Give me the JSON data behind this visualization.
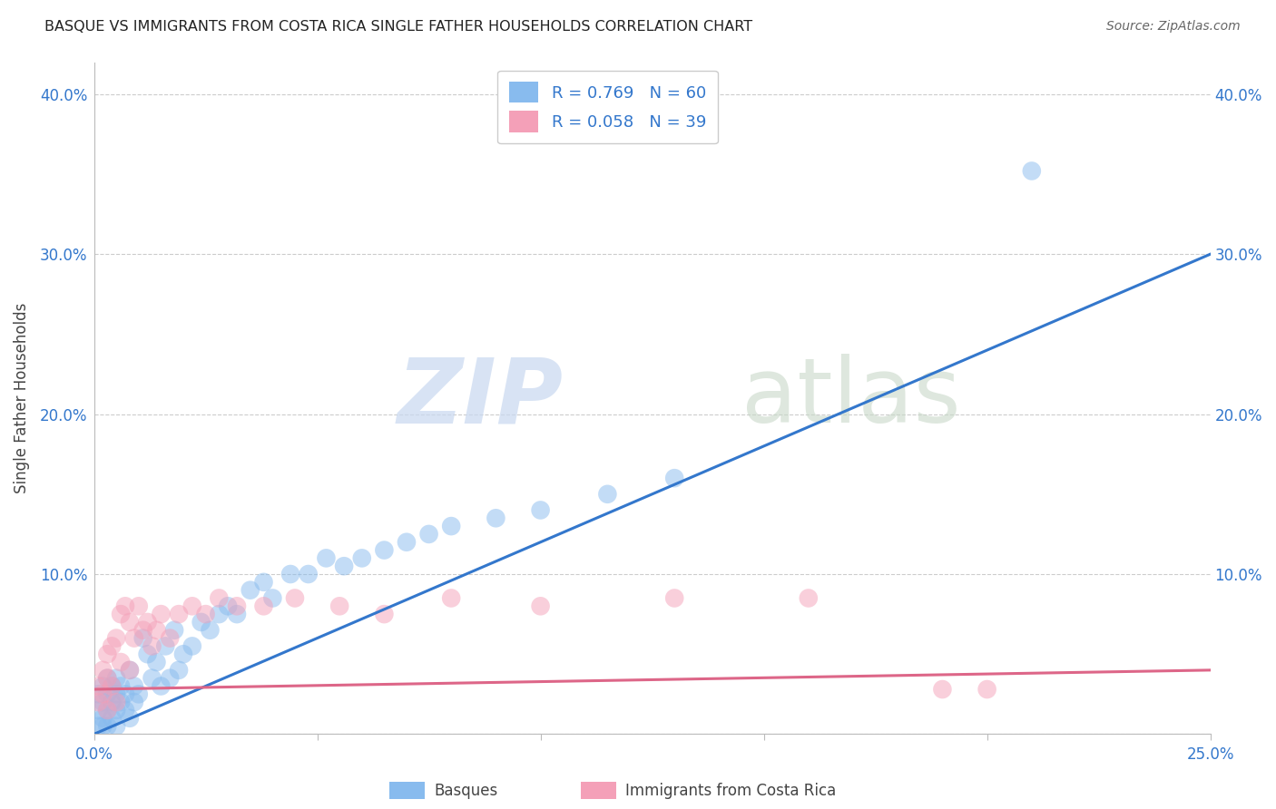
{
  "title": "BASQUE VS IMMIGRANTS FROM COSTA RICA SINGLE FATHER HOUSEHOLDS CORRELATION CHART",
  "source": "Source: ZipAtlas.com",
  "ylabel": "Single Father Households",
  "xlim": [
    0.0,
    0.25
  ],
  "ylim": [
    0.0,
    0.42
  ],
  "basque_color": "#88bbee",
  "costa_rica_color": "#f4a0b8",
  "basque_line_color": "#3377cc",
  "costa_rica_line_color": "#dd6688",
  "R_basque": 0.769,
  "N_basque": 60,
  "R_costa_rica": 0.058,
  "N_costa_rica": 39,
  "basque_line_x": [
    0.0,
    0.25
  ],
  "basque_line_y": [
    0.0,
    0.3
  ],
  "costa_line_x": [
    0.0,
    0.25
  ],
  "costa_line_y": [
    0.028,
    0.04
  ],
  "basque_points_x": [
    0.001,
    0.001,
    0.001,
    0.002,
    0.002,
    0.002,
    0.002,
    0.003,
    0.003,
    0.003,
    0.003,
    0.004,
    0.004,
    0.004,
    0.005,
    0.005,
    0.005,
    0.005,
    0.006,
    0.006,
    0.007,
    0.007,
    0.008,
    0.008,
    0.009,
    0.009,
    0.01,
    0.011,
    0.012,
    0.013,
    0.014,
    0.015,
    0.016,
    0.017,
    0.018,
    0.019,
    0.02,
    0.022,
    0.024,
    0.026,
    0.028,
    0.03,
    0.032,
    0.035,
    0.038,
    0.04,
    0.044,
    0.048,
    0.052,
    0.056,
    0.06,
    0.065,
    0.07,
    0.075,
    0.08,
    0.09,
    0.1,
    0.115,
    0.13,
    0.21
  ],
  "basque_points_y": [
    0.025,
    0.015,
    0.005,
    0.02,
    0.03,
    0.01,
    0.005,
    0.025,
    0.015,
    0.035,
    0.005,
    0.02,
    0.03,
    0.01,
    0.025,
    0.015,
    0.035,
    0.005,
    0.03,
    0.02,
    0.025,
    0.015,
    0.04,
    0.01,
    0.03,
    0.02,
    0.025,
    0.06,
    0.05,
    0.035,
    0.045,
    0.03,
    0.055,
    0.035,
    0.065,
    0.04,
    0.05,
    0.055,
    0.07,
    0.065,
    0.075,
    0.08,
    0.075,
    0.09,
    0.095,
    0.085,
    0.1,
    0.1,
    0.11,
    0.105,
    0.11,
    0.115,
    0.12,
    0.125,
    0.13,
    0.135,
    0.14,
    0.15,
    0.16,
    0.352
  ],
  "costa_rica_points_x": [
    0.001,
    0.001,
    0.002,
    0.002,
    0.003,
    0.003,
    0.003,
    0.004,
    0.004,
    0.005,
    0.005,
    0.006,
    0.006,
    0.007,
    0.008,
    0.008,
    0.009,
    0.01,
    0.011,
    0.012,
    0.013,
    0.014,
    0.015,
    0.017,
    0.019,
    0.022,
    0.025,
    0.028,
    0.032,
    0.038,
    0.045,
    0.055,
    0.065,
    0.08,
    0.1,
    0.13,
    0.16,
    0.19,
    0.2
  ],
  "costa_rica_points_y": [
    0.03,
    0.02,
    0.04,
    0.025,
    0.05,
    0.035,
    0.015,
    0.055,
    0.03,
    0.06,
    0.02,
    0.045,
    0.075,
    0.08,
    0.07,
    0.04,
    0.06,
    0.08,
    0.065,
    0.07,
    0.055,
    0.065,
    0.075,
    0.06,
    0.075,
    0.08,
    0.075,
    0.085,
    0.08,
    0.08,
    0.085,
    0.08,
    0.075,
    0.085,
    0.08,
    0.085,
    0.085,
    0.028,
    0.028
  ]
}
